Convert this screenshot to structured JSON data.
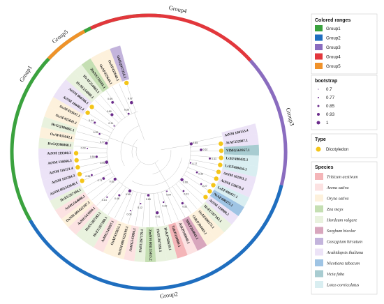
{
  "groups": [
    {
      "name": "Group1",
      "color": "#3aa23e",
      "start": 150,
      "end": 275
    },
    {
      "name": "Group2",
      "color": "#1f6ebf",
      "start": 14,
      "end": 150
    },
    {
      "name": "Group3",
      "color": "#8a6cbf",
      "start": -42,
      "end": 14
    },
    {
      "name": "Group4",
      "color": "#e2373c",
      "start": -115,
      "end": -42
    },
    {
      "name": "Group5",
      "color": "#f0922a",
      "start": -137,
      "end": -118
    }
  ],
  "leaves": [
    {
      "label": "AtNM 100153.4",
      "color": "#ece3f7",
      "star": false
    },
    {
      "label": "AtAF232907.1",
      "color": "#ece3f7",
      "star": true
    },
    {
      "label": "VfMG561957.1",
      "color": "#a8ccd1",
      "star": true
    },
    {
      "label": "LcEF490435.1",
      "color": "#d9eef1",
      "star": true
    },
    {
      "label": "LcEF490436.1",
      "color": "#d9eef1",
      "star": true
    },
    {
      "label": "AtNM 102951.2",
      "color": "#ece3f7",
      "star": true
    },
    {
      "label": "AtNM 128870.4",
      "color": "#ece3f7",
      "star": true
    },
    {
      "label": "LcEF490437.1",
      "color": "#d9eef1",
      "star": true
    },
    {
      "label": "NtAF490375.1",
      "color": "#9fc4e4",
      "star": true
    },
    {
      "label": "AtNM 119900.3",
      "color": "#ece3f7",
      "star": true
    },
    {
      "label": "HvEU267182.1",
      "color": "#e9f2de",
      "star": false
    },
    {
      "label": "OsAF490373.1",
      "color": "#fdf1dc",
      "star": false
    },
    {
      "label": "OsKP204493.1",
      "color": "#fdf1dc",
      "star": false
    },
    {
      "label": "SbKP204643.1",
      "color": "#d8a6bd",
      "star": false
    },
    {
      "label": "AsKP240840.1",
      "color": "#fce2e2",
      "star": false
    },
    {
      "label": "TaKP350809.1",
      "color": "#f4b5b8",
      "star": false
    },
    {
      "label": "HvKP760639.1",
      "color": "#e9f2de",
      "star": false
    },
    {
      "label": "HvEU267181.1",
      "color": "#e9f2de",
      "star": false
    },
    {
      "label": "ZmNM 001155415.2",
      "color": "#c5dfb3",
      "star": false
    },
    {
      "label": "HvEU267179.1",
      "color": "#e9f2de",
      "star": false
    },
    {
      "label": "AsMG543996.1",
      "color": "#fce2e2",
      "star": false
    },
    {
      "label": "OsNM 001422109.1",
      "color": "#fdf1dc",
      "star": false
    },
    {
      "label": "OsAF435651.1",
      "color": "#fdf1dc",
      "star": false
    },
    {
      "label": "AsMG543997.1",
      "color": "#fce2e2",
      "star": false
    },
    {
      "label": "HvEU267180.1",
      "color": "#e9f2de",
      "star": false
    },
    {
      "label": "HvEU267183.1",
      "color": "#e9f2de",
      "star": false
    },
    {
      "label": "AsMG543999.1",
      "color": "#fce2e2",
      "star": false
    },
    {
      "label": "OsNM 001422187.1",
      "color": "#fdf1dc",
      "star": false
    },
    {
      "label": "AsMG544000.1",
      "color": "#fce2e2",
      "star": false
    },
    {
      "label": "HvEU267184.1",
      "color": "#e9f2de",
      "star": false
    },
    {
      "label": "AtNM 001343640.1",
      "color": "#ece3f7",
      "star": true
    },
    {
      "label": "AtNM 102284.3",
      "color": "#ece3f7",
      "star": true
    },
    {
      "label": "AtNM 116121.4",
      "color": "#ece3f7",
      "star": true
    },
    {
      "label": "AtNM 116066.3",
      "color": "#ece3f7",
      "star": true
    },
    {
      "label": "AtNM 119308.3",
      "color": "#ece3f7",
      "star": true
    },
    {
      "label": "HvGQ386860.1",
      "color": "#e9f2de",
      "star": false
    },
    {
      "label": "OsAF435642.1",
      "color": "#fdf1dc",
      "star": false
    },
    {
      "label": "HvGQ386861.1",
      "color": "#e9f2de",
      "star": false
    },
    {
      "label": "OsAF435641.1",
      "color": "#fdf1dc",
      "star": false
    },
    {
      "label": "OsAF435647.1",
      "color": "#fdf1dc",
      "star": false
    },
    {
      "label": "AtNM 106402.4",
      "color": "#ece3f7",
      "star": true
    },
    {
      "label": "AtNM 060366.1",
      "color": "#ece3f7",
      "star": true
    },
    {
      "label": "HvAF254800.1",
      "color": "#e9f2de",
      "star": false
    },
    {
      "label": "HvAF254803.1",
      "color": "#e9f2de",
      "star": false
    },
    {
      "label": "ZmNX710101.1",
      "color": "#c5dfb3",
      "star": false
    },
    {
      "label": "OsAF435644.1",
      "color": "#fdf1dc",
      "star": false
    },
    {
      "label": "OsAF435649.1",
      "color": "#fdf1dc",
      "star": false
    },
    {
      "label": "GhHQ417216.1",
      "color": "#c3b4dc",
      "star": true
    }
  ],
  "boot_values": [
    "0.85",
    "0.62",
    "0.41",
    "0.17",
    "0.33",
    "0.27",
    "0.93",
    "0.31",
    "0.52",
    "0.04",
    "0.22",
    "0.91",
    "0.65",
    "0.12",
    "0.08",
    "0.95",
    "0.46",
    "0.14",
    "0.82",
    "0.71",
    "0.38",
    "0.99",
    "0.55",
    "0.03",
    "0.77",
    "0.26",
    "0.44",
    "0.11",
    "0.89",
    "0.69",
    "0.35",
    "0.97"
  ],
  "legend": {
    "colored_ranges_title": "Colored ranges",
    "colored_ranges": [
      {
        "label": "Group1",
        "color": "#3aa23e"
      },
      {
        "label": "Group2",
        "color": "#1f6ebf"
      },
      {
        "label": "Group3",
        "color": "#8a6cbf"
      },
      {
        "label": "Group4",
        "color": "#e2373c"
      },
      {
        "label": "Group5",
        "color": "#f0922a"
      }
    ],
    "bootstrap_title": "bootstrap",
    "bootstrap": [
      {
        "label": "0.7",
        "r": 0.6
      },
      {
        "label": "0.77",
        "r": 1.0
      },
      {
        "label": "0.85",
        "r": 1.5
      },
      {
        "label": "0.93",
        "r": 2.0
      },
      {
        "label": "1",
        "r": 2.5
      }
    ],
    "type_title": "Type",
    "type_items": [
      {
        "label": "Dicotyledon",
        "color": "#f4c518"
      }
    ],
    "species_title": "Species",
    "species": [
      {
        "label": "Triticum aestivum",
        "color": "#f4b5b8"
      },
      {
        "label": "Avena sativa",
        "color": "#fce2e2"
      },
      {
        "label": "Oryza sativa",
        "color": "#fdf1dc"
      },
      {
        "label": "Zea mays",
        "color": "#c5dfb3"
      },
      {
        "label": "Hordeum vulgare",
        "color": "#e9f2de"
      },
      {
        "label": "Sorghum bicolor",
        "color": "#d8a6bd"
      },
      {
        "label": "Gossypium hirsutum",
        "color": "#c3b4dc"
      },
      {
        "label": "Arabidopsis thaliana",
        "color": "#ece3f7"
      },
      {
        "label": "Nicotiana tabacum",
        "color": "#9fc4e4"
      },
      {
        "label": "Vicia faba",
        "color": "#a8ccd1"
      },
      {
        "label": "Lotus corniculatus",
        "color": "#d9eef1"
      }
    ]
  },
  "colors": {
    "dot": "#6a2a8a",
    "branch": "#b8b8b8",
    "star": "#f4c518",
    "legend_border": "#cccccc"
  }
}
